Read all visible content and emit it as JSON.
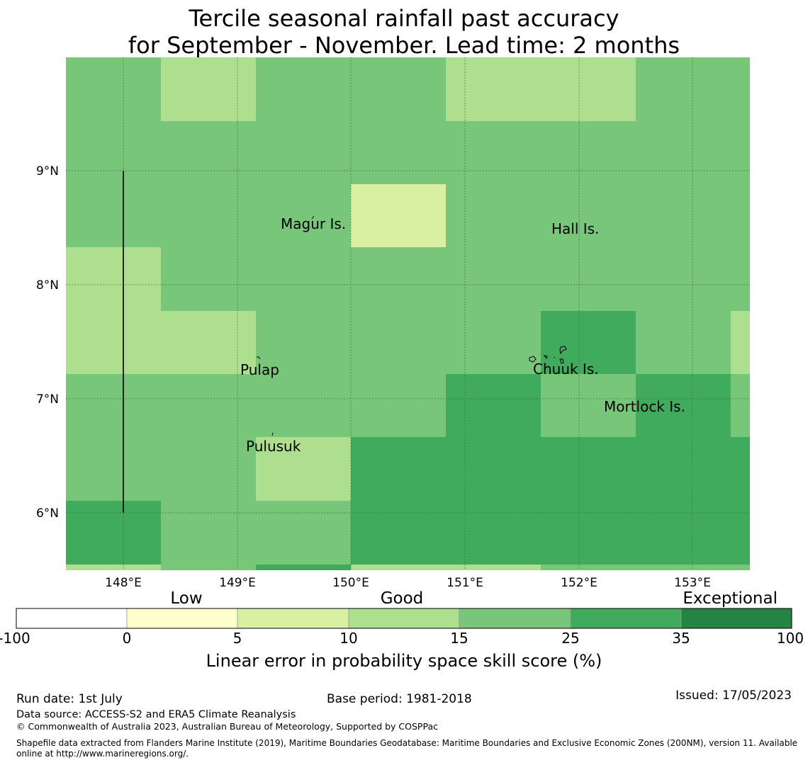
{
  "title": {
    "line1": "Tercile seasonal rainfall past accuracy",
    "line2": "for September - November. Lead time: 2 months"
  },
  "map": {
    "lat_ticks": [
      "9°N",
      "8°N",
      "7°N",
      "6°N"
    ],
    "lon_ticks": [
      "148°E",
      "149°E",
      "150°E",
      "151°E",
      "152°E",
      "153°E"
    ],
    "places": [
      "Magur Is.",
      "Hall Is.",
      "Pulap",
      "Chuuk Is.",
      "Mortlock Is.",
      "Pulusuk"
    ],
    "colors": {
      "light": "#addf8e",
      "pale": "#d9f0a3",
      "mid": "#78c679",
      "dark": "#41ab5d",
      "darker": "#238443",
      "cream": "#ffffcc"
    }
  },
  "legend": {
    "categories": [
      "Low",
      "Good",
      "Exceptional"
    ],
    "ticks": [
      "-100",
      "0",
      "5",
      "10",
      "15",
      "25",
      "35",
      "100"
    ],
    "colors": [
      "#ffffff",
      "#ffffcc",
      "#d9f0a3",
      "#addf8e",
      "#78c679",
      "#41ab5d",
      "#238443"
    ],
    "label": "Linear error in probability space skill score (%)"
  },
  "footer": {
    "run_date": "Run date: 1st July",
    "base_period": "Base period: 1981-2018",
    "issued": "Issued: 17/05/2023",
    "data_source": "Data source: ACCESS-S2 and ERA5 Climate Reanalysis",
    "copyright": "© Commonwealth of Australia 2023, Australian Bureau of Meteorology, Supported by COSPPac",
    "shapefile_line1": "Shapefile data extracted from Flanders Marine Institute (2019), Maritime Boundaries Geodatabase: Maritime Boundaries and Exclusive Economic Zones (200NM), version 11. Available",
    "shapefile_line2": "online at http://www.marineregions.org/."
  }
}
